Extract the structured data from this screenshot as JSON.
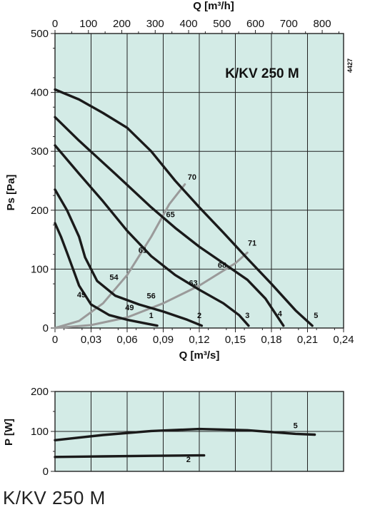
{
  "caption": "K/KV 250 M",
  "chart_data": [
    {
      "type": "line",
      "title": "K/KV 250 M",
      "code": "4427",
      "xlabel": "Q [m³/s]",
      "ylabel": "Ps [Pa]",
      "x2label": "Q [m³/h]",
      "xlim": [
        0,
        0.24
      ],
      "ylim": [
        0,
        500
      ],
      "x2lim": [
        0,
        864
      ],
      "x_ticks": [
        "0",
        "0,03",
        "0,06",
        "0,09",
        "0,12",
        "0,15",
        "0,18",
        "0,21",
        "0,24"
      ],
      "y_ticks": [
        "0",
        "100",
        "200",
        "300",
        "400",
        "500"
      ],
      "x2_ticks": [
        "0",
        "100",
        "200",
        "300",
        "400",
        "500",
        "600",
        "700",
        "800"
      ],
      "grid": true,
      "colors": {
        "background": "#d3ebe6",
        "curve": "#1a1a1a",
        "system": "#9a9a9a",
        "grid": "#222222"
      },
      "series": [
        {
          "name": "1",
          "x": [
            0,
            0.005,
            0.01,
            0.015,
            0.02,
            0.03,
            0.045,
            0.06,
            0.075,
            0.085
          ],
          "y": [
            178,
            155,
            128,
            100,
            72,
            40,
            22,
            14,
            8,
            4
          ]
        },
        {
          "name": "2",
          "x": [
            0,
            0.01,
            0.02,
            0.025,
            0.035,
            0.05,
            0.07,
            0.09,
            0.11,
            0.122
          ],
          "y": [
            235,
            200,
            155,
            120,
            80,
            55,
            40,
            28,
            14,
            4
          ]
        },
        {
          "name": "3",
          "x": [
            0,
            0.02,
            0.04,
            0.06,
            0.08,
            0.1,
            0.12,
            0.14,
            0.153,
            0.161
          ],
          "y": [
            310,
            262,
            215,
            165,
            122,
            90,
            65,
            42,
            22,
            4
          ]
        },
        {
          "name": "4",
          "x": [
            0,
            0.02,
            0.05,
            0.08,
            0.1,
            0.12,
            0.14,
            0.16,
            0.175,
            0.19
          ],
          "y": [
            358,
            318,
            262,
            205,
            170,
            138,
            110,
            82,
            50,
            4
          ]
        },
        {
          "name": "5",
          "x": [
            0,
            0.02,
            0.04,
            0.06,
            0.08,
            0.1,
            0.12,
            0.14,
            0.16,
            0.18,
            0.2,
            0.214
          ],
          "y": [
            405,
            388,
            365,
            340,
            300,
            250,
            205,
            162,
            118,
            75,
            30,
            4
          ]
        }
      ],
      "system_curves": [
        {
          "x": [
            0,
            0.02,
            0.04,
            0.06,
            0.08,
            0.095,
            0.108
          ],
          "y": [
            0,
            12,
            42,
            90,
            155,
            210,
            244
          ]
        },
        {
          "x": [
            0,
            0.03,
            0.06,
            0.09,
            0.12,
            0.15,
            0.16
          ],
          "y": [
            0,
            5,
            18,
            42,
            72,
            110,
            128
          ]
        }
      ],
      "efficiency_labels": [
        {
          "text": "70",
          "x": 0.114,
          "y": 252
        },
        {
          "text": "65",
          "x": 0.096,
          "y": 188
        },
        {
          "text": "61",
          "x": 0.073,
          "y": 128
        },
        {
          "text": "54",
          "x": 0.049,
          "y": 82
        },
        {
          "text": "49",
          "x": 0.022,
          "y": 52
        },
        {
          "text": "56",
          "x": 0.08,
          "y": 50
        },
        {
          "text": "49",
          "x": 0.062,
          "y": 30
        },
        {
          "text": "63",
          "x": 0.115,
          "y": 72
        },
        {
          "text": "68",
          "x": 0.139,
          "y": 102
        },
        {
          "text": "71",
          "x": 0.164,
          "y": 140
        }
      ],
      "curve_labels": [
        {
          "text": "1",
          "x": 0.08,
          "y": 17
        },
        {
          "text": "2",
          "x": 0.12,
          "y": 17
        },
        {
          "text": "3",
          "x": 0.16,
          "y": 17
        },
        {
          "text": "4",
          "x": 0.187,
          "y": 20
        },
        {
          "text": "5",
          "x": 0.217,
          "y": 17
        }
      ]
    },
    {
      "type": "line",
      "ylabel": "P [W]",
      "xlim": [
        0,
        0.24
      ],
      "ylim": [
        0,
        200
      ],
      "y_ticks": [
        "0",
        "100",
        "200"
      ],
      "grid": true,
      "series": [
        {
          "name": "5",
          "x": [
            0,
            0.04,
            0.08,
            0.12,
            0.16,
            0.2,
            0.216
          ],
          "y": [
            78,
            91,
            101,
            106,
            103,
            94,
            92
          ]
        },
        {
          "name": "2",
          "x": [
            0,
            0.04,
            0.08,
            0.12,
            0.124
          ],
          "y": [
            36,
            37.5,
            39,
            40,
            40
          ]
        }
      ],
      "curve_labels": [
        {
          "text": "5",
          "x": 0.2,
          "y": 108
        },
        {
          "text": "2",
          "x": 0.111,
          "y": 23
        }
      ]
    }
  ]
}
